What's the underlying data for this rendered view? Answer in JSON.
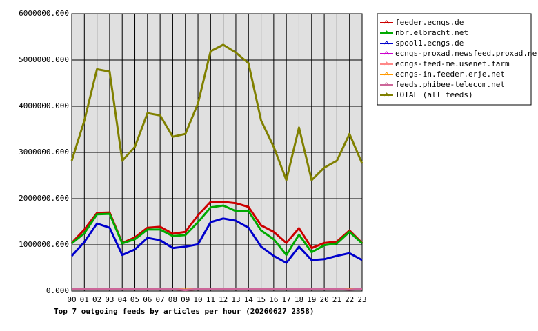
{
  "chart_data": {
    "type": "line",
    "title": "Top 7 outgoing feeds by articles per hour (20260627 2358)",
    "categories": [
      "00",
      "01",
      "02",
      "03",
      "04",
      "05",
      "06",
      "07",
      "08",
      "09",
      "10",
      "11",
      "12",
      "13",
      "14",
      "15",
      "16",
      "17",
      "18",
      "19",
      "20",
      "21",
      "22",
      "23"
    ],
    "ylim": [
      0,
      6000000
    ],
    "yticks": [
      {
        "value": 0,
        "label": "0.000"
      },
      {
        "value": 1000000,
        "label": "1000000.000"
      },
      {
        "value": 2000000,
        "label": "2000000.000"
      },
      {
        "value": 3000000,
        "label": "3000000.000"
      },
      {
        "value": 4000000,
        "label": "4000000.000"
      },
      {
        "value": 5000000,
        "label": "5000000.000"
      },
      {
        "value": 6000000,
        "label": "6000000.000"
      }
    ],
    "grid": true,
    "legend": "right",
    "series": [
      {
        "name": "feeder.ecngs.de",
        "color": "#cc0000",
        "values": [
          1040000,
          1330000,
          1690000,
          1700000,
          1040000,
          1160000,
          1370000,
          1390000,
          1240000,
          1280000,
          1640000,
          1930000,
          1930000,
          1900000,
          1820000,
          1420000,
          1280000,
          1040000,
          1360000,
          930000,
          1040000,
          1070000,
          1310000,
          1040000
        ]
      },
      {
        "name": "nbr.elbracht.net",
        "color": "#00aa00",
        "values": [
          1030000,
          1250000,
          1660000,
          1670000,
          1030000,
          1120000,
          1330000,
          1330000,
          1190000,
          1210000,
          1490000,
          1810000,
          1850000,
          1730000,
          1730000,
          1310000,
          1120000,
          780000,
          1220000,
          840000,
          990000,
          1030000,
          1280000,
          1030000
        ]
      },
      {
        "name": "spool1.ecngs.de",
        "color": "#0000cc",
        "values": [
          760000,
          1060000,
          1460000,
          1370000,
          780000,
          900000,
          1150000,
          1100000,
          930000,
          960000,
          1010000,
          1490000,
          1570000,
          1520000,
          1370000,
          960000,
          760000,
          610000,
          960000,
          670000,
          690000,
          760000,
          820000,
          670000
        ]
      },
      {
        "name": "ecngs-proxad.newsfeed.proxad.net",
        "color": "#cc00cc",
        "values": [
          40000,
          40000,
          40000,
          40000,
          40000,
          40000,
          40000,
          40000,
          40000,
          30000,
          40000,
          40000,
          40000,
          40000,
          40000,
          40000,
          40000,
          40000,
          40000,
          40000,
          40000,
          40000,
          40000,
          40000
        ]
      },
      {
        "name": "ecngs-feed-me.usenet.farm",
        "color": "#ff8888",
        "values": [
          45000,
          45000,
          45000,
          45000,
          45000,
          45000,
          45000,
          45000,
          45000,
          30000,
          45000,
          45000,
          45000,
          45000,
          45000,
          45000,
          45000,
          45000,
          45000,
          45000,
          45000,
          45000,
          45000,
          45000
        ]
      },
      {
        "name": "ecngs-in.feeder.erje.net",
        "color": "#ff9900",
        "values": [
          40000,
          40000,
          40000,
          40000,
          40000,
          40000,
          40000,
          40000,
          40000,
          30000,
          40000,
          40000,
          40000,
          40000,
          40000,
          40000,
          40000,
          40000,
          40000,
          40000,
          40000,
          40000,
          40000,
          40000
        ]
      },
      {
        "name": "feeds.phibee-telecom.net",
        "color": "#cc6699",
        "values": [
          45000,
          45000,
          45000,
          45000,
          45000,
          45000,
          45000,
          45000,
          45000,
          20000,
          45000,
          45000,
          45000,
          45000,
          45000,
          45000,
          45000,
          45000,
          45000,
          45000,
          45000,
          45000,
          30000,
          45000
        ]
      },
      {
        "name": "TOTAL (all feeds)",
        "color": "#808000",
        "values": [
          2820000,
          3690000,
          4800000,
          4750000,
          2820000,
          3120000,
          3850000,
          3800000,
          3340000,
          3400000,
          4060000,
          5190000,
          5330000,
          5160000,
          4930000,
          3690000,
          3120000,
          2400000,
          3540000,
          2400000,
          2670000,
          2820000,
          3400000,
          2760000
        ]
      }
    ]
  }
}
